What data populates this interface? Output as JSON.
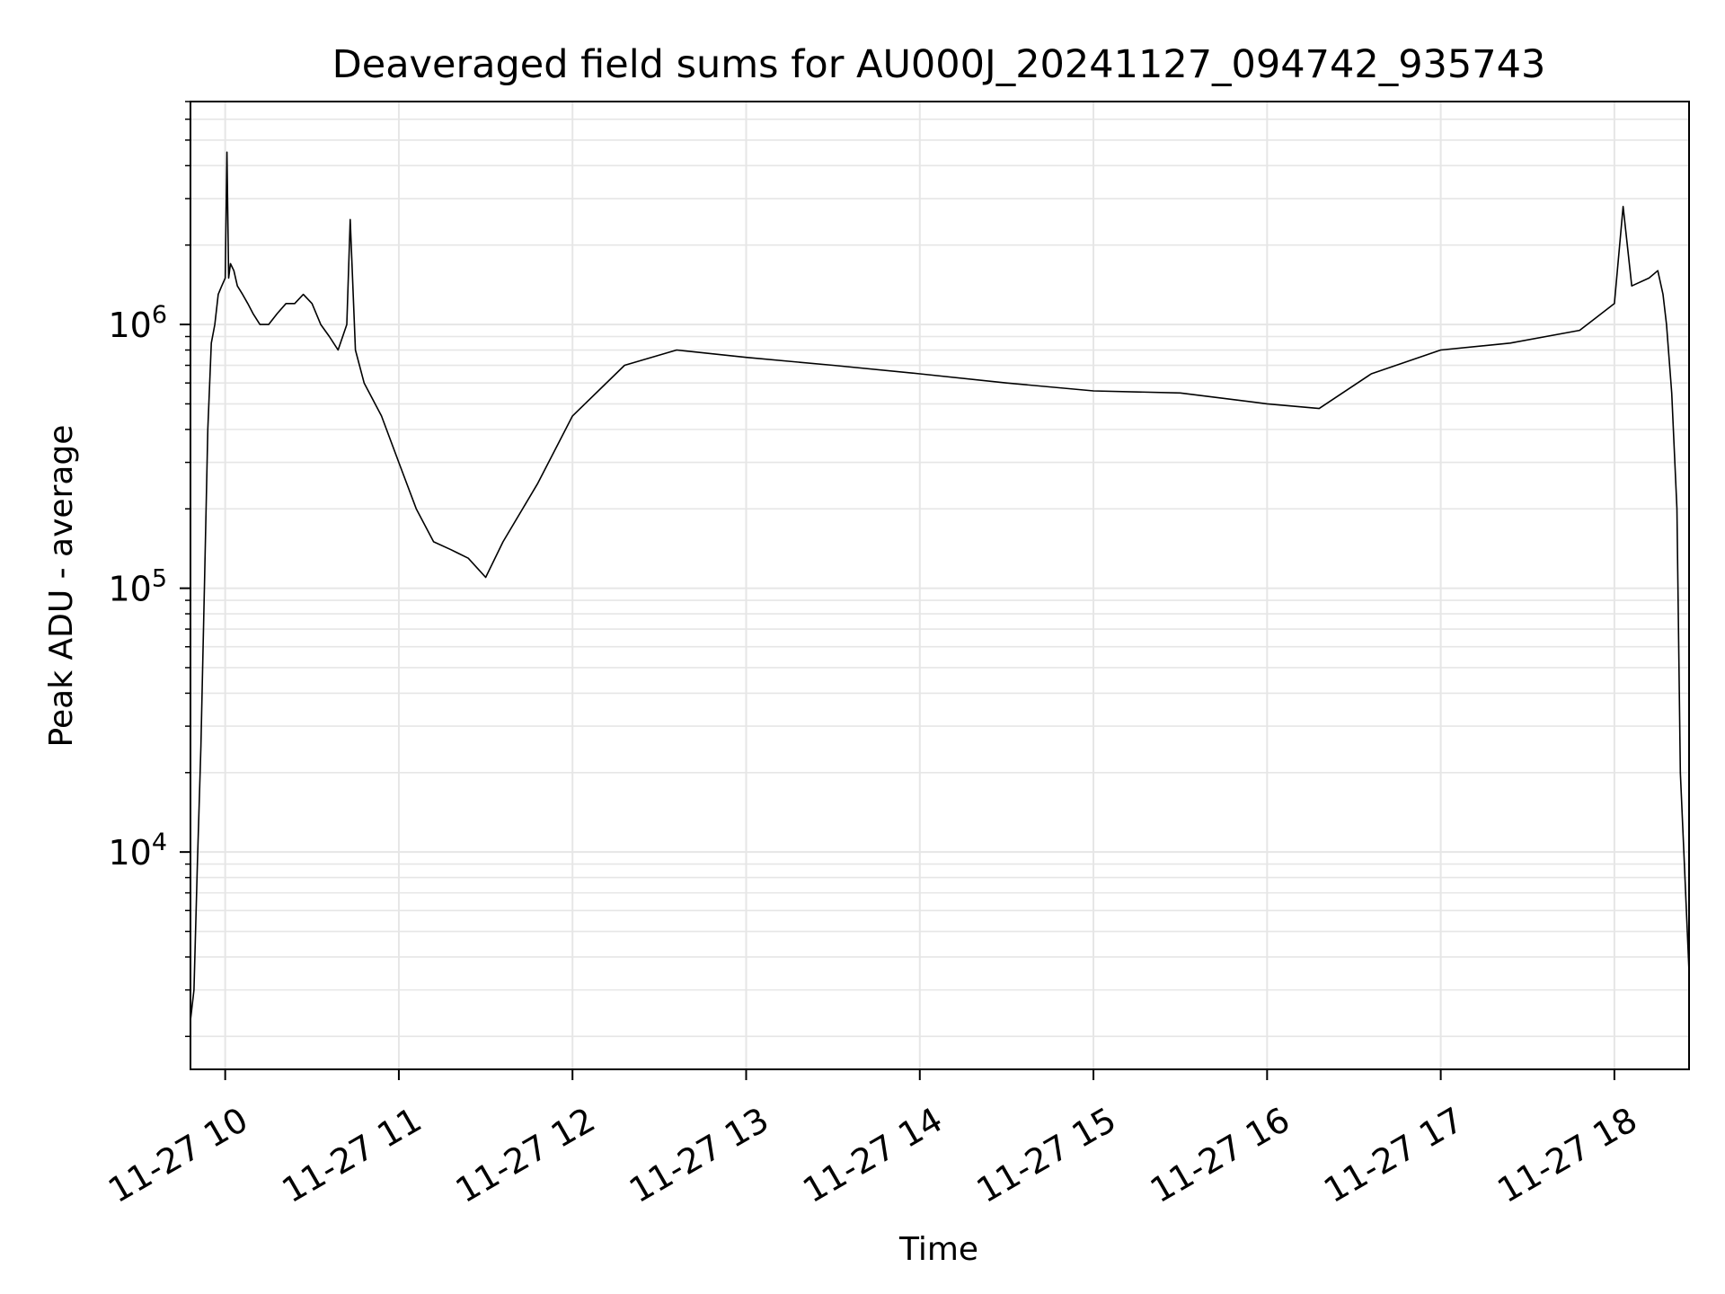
{
  "chart_data": {
    "type": "line",
    "title": "Deaveraged field sums for AU000J_20241127_094742_935743",
    "xlabel": "Time",
    "ylabel": "Peak ADU - average",
    "yscale": "log",
    "ylim": [
      1500,
      7000000
    ],
    "xlim_hours": [
      9.8,
      18.43
    ],
    "grid": true,
    "line_color": "#000000",
    "grid_color": "#e6e6e6",
    "x_ticks": [
      {
        "label": "11-27 10",
        "hour": 10
      },
      {
        "label": "11-27 11",
        "hour": 11
      },
      {
        "label": "11-27 12",
        "hour": 12
      },
      {
        "label": "11-27 13",
        "hour": 13
      },
      {
        "label": "11-27 14",
        "hour": 14
      },
      {
        "label": "11-27 15",
        "hour": 15
      },
      {
        "label": "11-27 16",
        "hour": 16
      },
      {
        "label": "11-27 17",
        "hour": 17
      },
      {
        "label": "11-27 18",
        "hour": 18
      }
    ],
    "y_ticks": [
      {
        "base": "10",
        "exp": "4",
        "value": 10000
      },
      {
        "base": "10",
        "exp": "5",
        "value": 100000
      },
      {
        "base": "10",
        "exp": "6",
        "value": 1000000
      }
    ],
    "series": [
      {
        "x": [
          9.8,
          9.82,
          9.84,
          9.86,
          9.88,
          9.9,
          9.92,
          9.94,
          9.96,
          9.98,
          10.0,
          10.01,
          10.02,
          10.03,
          10.05,
          10.07,
          10.1,
          10.13,
          10.16,
          10.2,
          10.25,
          10.3,
          10.35,
          10.4,
          10.45,
          10.5,
          10.55,
          10.6,
          10.65,
          10.7,
          10.72,
          10.75,
          10.8,
          10.9,
          11.0,
          11.1,
          11.2,
          11.3,
          11.4,
          11.5,
          11.6,
          11.8,
          12.0,
          12.3,
          12.6,
          13.0,
          13.5,
          14.0,
          14.5,
          15.0,
          15.5,
          16.0,
          16.3,
          16.6,
          17.0,
          17.4,
          17.8,
          18.0,
          18.05,
          18.1,
          18.2,
          18.25,
          18.28,
          18.3,
          18.33,
          18.36,
          18.38,
          18.4,
          18.43
        ],
        "values": [
          2300,
          3000,
          9000,
          25000,
          100000,
          400000,
          850000,
          1000000,
          1300000,
          1400000,
          1500000,
          4500000,
          1500000,
          1700000,
          1600000,
          1400000,
          1300000,
          1200000,
          1100000,
          1000000,
          1000000,
          1100000,
          1200000,
          1200000,
          1300000,
          1200000,
          1000000,
          900000,
          800000,
          1000000,
          2500000,
          800000,
          600000,
          450000,
          300000,
          200000,
          150000,
          140000,
          130000,
          110000,
          150000,
          250000,
          450000,
          700000,
          800000,
          750000,
          700000,
          650000,
          600000,
          560000,
          550000,
          500000,
          480000,
          650000,
          800000,
          850000,
          950000,
          1200000,
          2800000,
          1400000,
          1500000,
          1600000,
          1300000,
          1000000,
          550000,
          200000,
          20000,
          10000,
          3500
        ]
      }
    ]
  }
}
